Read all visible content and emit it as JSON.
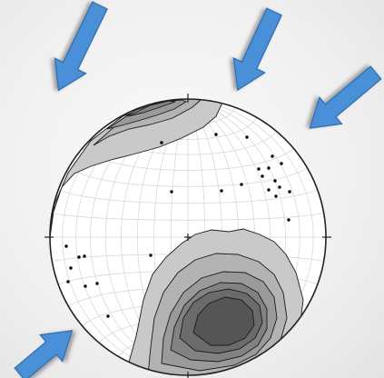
{
  "figure": {
    "kind": "stereonet-contoured-pole-plot",
    "background_color": "#f2f2f2",
    "net_type": "equal-area",
    "net_line_color": "#d8d8d8",
    "outline_color": "#222222",
    "pole_color": "#000000",
    "contour_fills": [
      "#c9c9c9",
      "#b3b3b3",
      "#9a9a9a",
      "#828282",
      "#6b6b6b",
      "#555555"
    ],
    "arrow_fill": "#4a90d9",
    "arrow_edge": "#2f6aa8",
    "arrow_count": 4,
    "arrow_icons": [
      "arrow-icon",
      "arrow-icon",
      "arrow-icon",
      "arrow-icon"
    ],
    "pole_count": 26
  }
}
